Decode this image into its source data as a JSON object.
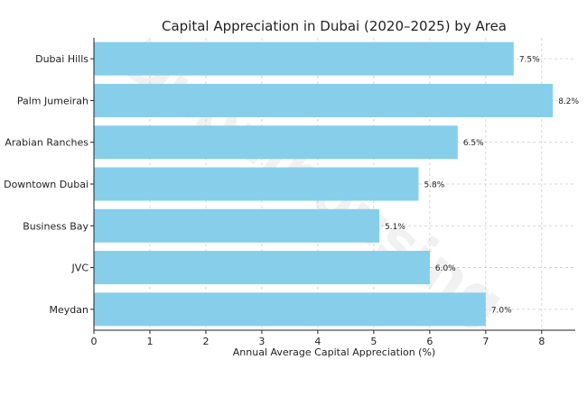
{
  "chart_data": {
    "type": "bar",
    "orientation": "horizontal",
    "title": "Capital Appreciation in Dubai (2020–2025) by Area",
    "xlabel": "Annual Average Capital Appreciation (%)",
    "ylabel": "",
    "categories": [
      "Dubai Hills",
      "Palm Jumeirah",
      "Arabian Ranches",
      "Downtown Dubai",
      "Business Bay",
      "JVC",
      "Meydan"
    ],
    "values": [
      7.5,
      8.2,
      6.5,
      5.8,
      5.1,
      6.0,
      7.0
    ],
    "data_labels": [
      "7.5%",
      "8.2%",
      "6.5%",
      "5.8%",
      "5.1%",
      "6.0%",
      "7.0%"
    ],
    "xlim": [
      0,
      8.6
    ],
    "xticks": [
      0,
      1,
      2,
      3,
      4,
      5,
      6,
      7,
      8
    ],
    "grid": true,
    "bar_color": "#87ceeb",
    "watermark": "Dubaihousing"
  }
}
